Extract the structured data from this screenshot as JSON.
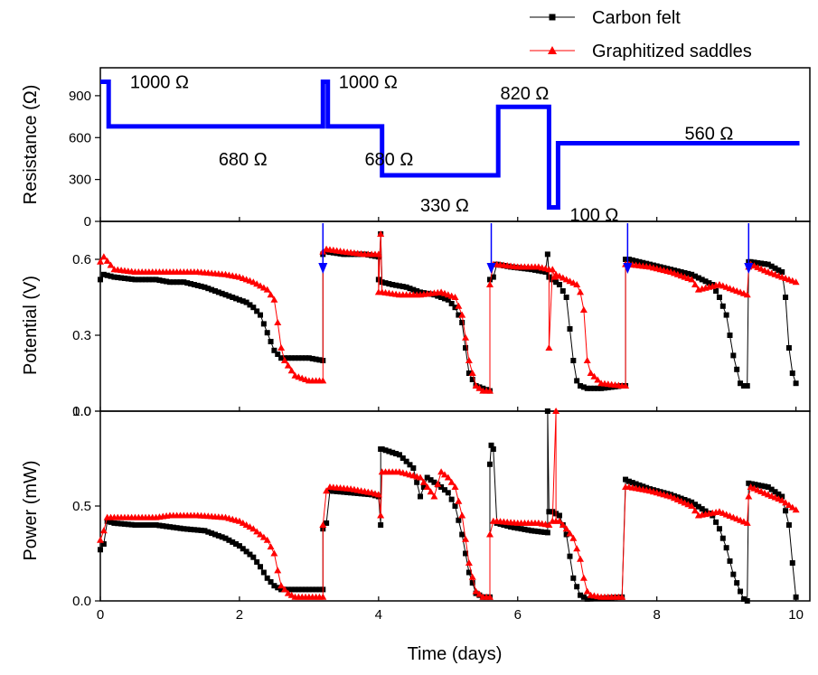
{
  "colors": {
    "carbon_felt": "#000000",
    "graphitized_saddles": "#ff0000",
    "resistance": "#0000ff",
    "arrows": "#0000ff"
  },
  "legend": [
    {
      "label": "Carbon felt",
      "marker": "square",
      "color": "#000000"
    },
    {
      "label": "Graphitized saddles",
      "marker": "triangle",
      "color": "#ff0000"
    }
  ],
  "chart_data": [
    {
      "type": "line",
      "panel": "resistance",
      "xlabel": "",
      "ylabel": "Resistance (Ω)",
      "xlim": [
        0,
        10.2
      ],
      "ylim": [
        0,
        1100
      ],
      "yticks": [
        "0",
        "300",
        "600",
        "900"
      ],
      "series": [
        {
          "x": [
            0,
            0.12,
            0.12,
            3.2,
            3.2,
            3.27,
            3.27,
            4.05,
            4.05,
            5.72,
            5.72,
            6.45,
            6.45,
            6.58,
            6.58,
            10.05
          ],
          "y": [
            1000,
            1000,
            680,
            680,
            1000,
            1000,
            680,
            680,
            330,
            330,
            820,
            820,
            100,
            100,
            560,
            560
          ]
        }
      ],
      "annotations": [
        {
          "text": "1000 Ω",
          "x": 0.85,
          "y": 1000
        },
        {
          "text": "1000 Ω",
          "x": 3.85,
          "y": 1000
        },
        {
          "text": "680 Ω",
          "x": 2.05,
          "y": 445
        },
        {
          "text": "680 Ω",
          "x": 4.15,
          "y": 445
        },
        {
          "text": "330 Ω",
          "x": 4.95,
          "y": 115
        },
        {
          "text": "820 Ω",
          "x": 6.1,
          "y": 920
        },
        {
          "text": "560 Ω",
          "x": 8.75,
          "y": 630
        },
        {
          "text": "100 Ω",
          "x": 7.1,
          "y": 50
        }
      ]
    },
    {
      "type": "line",
      "panel": "potential",
      "xlabel": "",
      "ylabel": "Potential (V)",
      "xlim": [
        0,
        10.2
      ],
      "ylim": [
        0,
        0.75
      ],
      "yticks": [
        "0.0",
        "0.3",
        "0.6"
      ],
      "arrows_at_x": [
        3.2,
        5.62,
        7.58,
        9.32
      ],
      "series": [
        {
          "name": "Carbon felt",
          "x": [
            0,
            0.05,
            0.2,
            0.5,
            0.8,
            1.0,
            1.2,
            1.5,
            1.8,
            2.0,
            2.1,
            2.2,
            2.3,
            2.4,
            2.5,
            2.6,
            2.8,
            3.0,
            3.2,
            3.2,
            3.25,
            3.5,
            3.8,
            4.0,
            4.0,
            4.03,
            4.05,
            4.2,
            4.4,
            4.6,
            4.8,
            5.0,
            5.1,
            5.2,
            5.3,
            5.4,
            5.5,
            5.6,
            5.6,
            5.65,
            5.7,
            5.9,
            6.2,
            6.4,
            6.43,
            6.45,
            6.5,
            6.6,
            6.7,
            6.8,
            6.85,
            6.9,
            7.0,
            7.2,
            7.5,
            7.55,
            7.55,
            7.6,
            7.9,
            8.2,
            8.5,
            8.8,
            8.9,
            9.0,
            9.1,
            9.2,
            9.25,
            9.3,
            9.32,
            9.35,
            9.6,
            9.8,
            9.85,
            9.9,
            9.95,
            10.0
          ],
          "y": [
            0.52,
            0.54,
            0.53,
            0.52,
            0.52,
            0.51,
            0.51,
            0.49,
            0.46,
            0.44,
            0.43,
            0.41,
            0.38,
            0.31,
            0.24,
            0.21,
            0.21,
            0.21,
            0.2,
            0.62,
            0.63,
            0.62,
            0.62,
            0.61,
            0.52,
            0.7,
            0.51,
            0.5,
            0.49,
            0.47,
            0.46,
            0.44,
            0.41,
            0.35,
            0.15,
            0.1,
            0.09,
            0.08,
            0.52,
            0.53,
            0.58,
            0.57,
            0.56,
            0.55,
            0.62,
            0.53,
            0.52,
            0.5,
            0.45,
            0.2,
            0.12,
            0.1,
            0.09,
            0.09,
            0.1,
            0.1,
            0.6,
            0.6,
            0.58,
            0.56,
            0.54,
            0.5,
            0.45,
            0.38,
            0.22,
            0.11,
            0.1,
            0.1,
            0.59,
            0.59,
            0.58,
            0.55,
            0.45,
            0.25,
            0.15,
            0.11
          ]
        },
        {
          "name": "Graphitized saddles",
          "x": [
            0,
            0.05,
            0.2,
            0.5,
            0.8,
            1.0,
            1.4,
            1.8,
            2.0,
            2.2,
            2.4,
            2.5,
            2.55,
            2.6,
            2.65,
            2.8,
            3.0,
            3.2,
            3.2,
            3.25,
            3.5,
            3.8,
            4.0,
            4.0,
            4.03,
            4.05,
            4.3,
            4.6,
            4.9,
            5.0,
            5.1,
            5.2,
            5.3,
            5.4,
            5.5,
            5.6,
            5.6,
            5.65,
            5.7,
            6.0,
            6.3,
            6.45,
            6.45,
            6.5,
            6.53,
            6.55,
            6.7,
            6.85,
            6.9,
            6.95,
            7.0,
            7.05,
            7.2,
            7.5,
            7.55,
            7.55,
            7.6,
            7.9,
            8.2,
            8.5,
            8.6,
            8.9,
            9.1,
            9.3,
            9.32,
            9.35,
            9.6,
            9.8,
            10.0
          ],
          "y": [
            0.59,
            0.61,
            0.56,
            0.55,
            0.55,
            0.55,
            0.55,
            0.54,
            0.53,
            0.51,
            0.48,
            0.44,
            0.35,
            0.25,
            0.2,
            0.14,
            0.12,
            0.12,
            0.63,
            0.64,
            0.63,
            0.62,
            0.62,
            0.47,
            0.7,
            0.47,
            0.46,
            0.46,
            0.47,
            0.46,
            0.45,
            0.38,
            0.2,
            0.1,
            0.08,
            0.08,
            0.5,
            0.58,
            0.58,
            0.57,
            0.57,
            0.56,
            0.25,
            0.56,
            0.53,
            0.54,
            0.52,
            0.5,
            0.47,
            0.4,
            0.2,
            0.15,
            0.11,
            0.1,
            0.1,
            0.58,
            0.58,
            0.57,
            0.55,
            0.52,
            0.48,
            0.5,
            0.48,
            0.46,
            0.57,
            0.58,
            0.55,
            0.53,
            0.51
          ]
        }
      ]
    },
    {
      "type": "line",
      "panel": "power",
      "xlabel": "Time (days)",
      "ylabel": "Power (mW)",
      "xlim": [
        0,
        10.2
      ],
      "ylim": [
        0,
        1.0
      ],
      "yticks": [
        "0.0",
        "0.5",
        "1.0"
      ],
      "xticks": [
        "0",
        "2",
        "4",
        "6",
        "8",
        "10"
      ],
      "series": [
        {
          "name": "Carbon felt",
          "x": [
            0,
            0.05,
            0.1,
            0.2,
            0.5,
            0.8,
            1.0,
            1.2,
            1.5,
            1.8,
            2.0,
            2.2,
            2.3,
            2.4,
            2.5,
            2.6,
            2.8,
            3.0,
            3.2,
            3.2,
            3.25,
            3.3,
            3.6,
            3.9,
            4.0,
            4.03,
            4.03,
            4.05,
            4.3,
            4.5,
            4.6,
            4.7,
            4.9,
            5.0,
            5.1,
            5.2,
            5.3,
            5.4,
            5.5,
            5.6,
            5.6,
            5.62,
            5.65,
            5.7,
            5.9,
            6.2,
            6.43,
            6.43,
            6.45,
            6.5,
            6.6,
            6.7,
            6.8,
            6.9,
            7.0,
            7.5,
            7.55,
            7.6,
            7.9,
            8.2,
            8.5,
            8.8,
            8.9,
            9.0,
            9.1,
            9.2,
            9.25,
            9.3,
            9.32,
            9.6,
            9.8,
            9.9,
            9.95,
            10.0
          ],
          "y": [
            0.27,
            0.3,
            0.42,
            0.41,
            0.4,
            0.4,
            0.39,
            0.38,
            0.37,
            0.33,
            0.29,
            0.23,
            0.18,
            0.12,
            0.08,
            0.06,
            0.06,
            0.06,
            0.06,
            0.38,
            0.41,
            0.58,
            0.57,
            0.56,
            0.55,
            0.4,
            0.8,
            0.8,
            0.77,
            0.7,
            0.55,
            0.65,
            0.6,
            0.57,
            0.5,
            0.35,
            0.15,
            0.04,
            0.02,
            0.02,
            0.72,
            0.82,
            0.8,
            0.41,
            0.39,
            0.37,
            0.36,
            1.0,
            0.47,
            0.47,
            0.45,
            0.35,
            0.12,
            0.03,
            0.01,
            0.02,
            0.64,
            0.63,
            0.59,
            0.56,
            0.52,
            0.45,
            0.38,
            0.28,
            0.14,
            0.05,
            0.01,
            0.0,
            0.62,
            0.6,
            0.55,
            0.4,
            0.2,
            0.02
          ]
        },
        {
          "name": "Graphitized saddles",
          "x": [
            0,
            0.05,
            0.1,
            0.2,
            0.5,
            0.8,
            1.0,
            1.4,
            1.8,
            2.0,
            2.2,
            2.4,
            2.5,
            2.55,
            2.6,
            2.7,
            2.8,
            3.0,
            3.2,
            3.2,
            3.25,
            3.3,
            3.6,
            3.9,
            4.0,
            4.03,
            4.05,
            4.3,
            4.6,
            4.8,
            4.9,
            5.0,
            5.1,
            5.2,
            5.3,
            5.4,
            5.5,
            5.6,
            5.6,
            5.65,
            5.7,
            6.0,
            6.3,
            6.45,
            6.5,
            6.55,
            6.55,
            6.6,
            6.7,
            6.8,
            6.9,
            6.95,
            7.0,
            7.05,
            7.2,
            7.5,
            7.55,
            7.6,
            7.9,
            8.2,
            8.5,
            8.6,
            8.9,
            9.1,
            9.3,
            9.32,
            9.35,
            9.6,
            9.8,
            10.0
          ],
          "y": [
            0.32,
            0.37,
            0.44,
            0.44,
            0.44,
            0.44,
            0.45,
            0.45,
            0.44,
            0.42,
            0.38,
            0.32,
            0.25,
            0.16,
            0.08,
            0.04,
            0.02,
            0.02,
            0.02,
            0.4,
            0.58,
            0.6,
            0.59,
            0.57,
            0.56,
            0.45,
            0.68,
            0.68,
            0.65,
            0.55,
            0.68,
            0.65,
            0.6,
            0.45,
            0.2,
            0.05,
            0.02,
            0.02,
            0.35,
            0.42,
            0.42,
            0.41,
            0.41,
            0.4,
            0.42,
            1.0,
            0.42,
            0.42,
            0.38,
            0.33,
            0.22,
            0.12,
            0.05,
            0.03,
            0.02,
            0.02,
            0.6,
            0.6,
            0.58,
            0.55,
            0.5,
            0.45,
            0.47,
            0.44,
            0.41,
            0.55,
            0.6,
            0.56,
            0.53,
            0.48
          ]
        }
      ]
    }
  ]
}
